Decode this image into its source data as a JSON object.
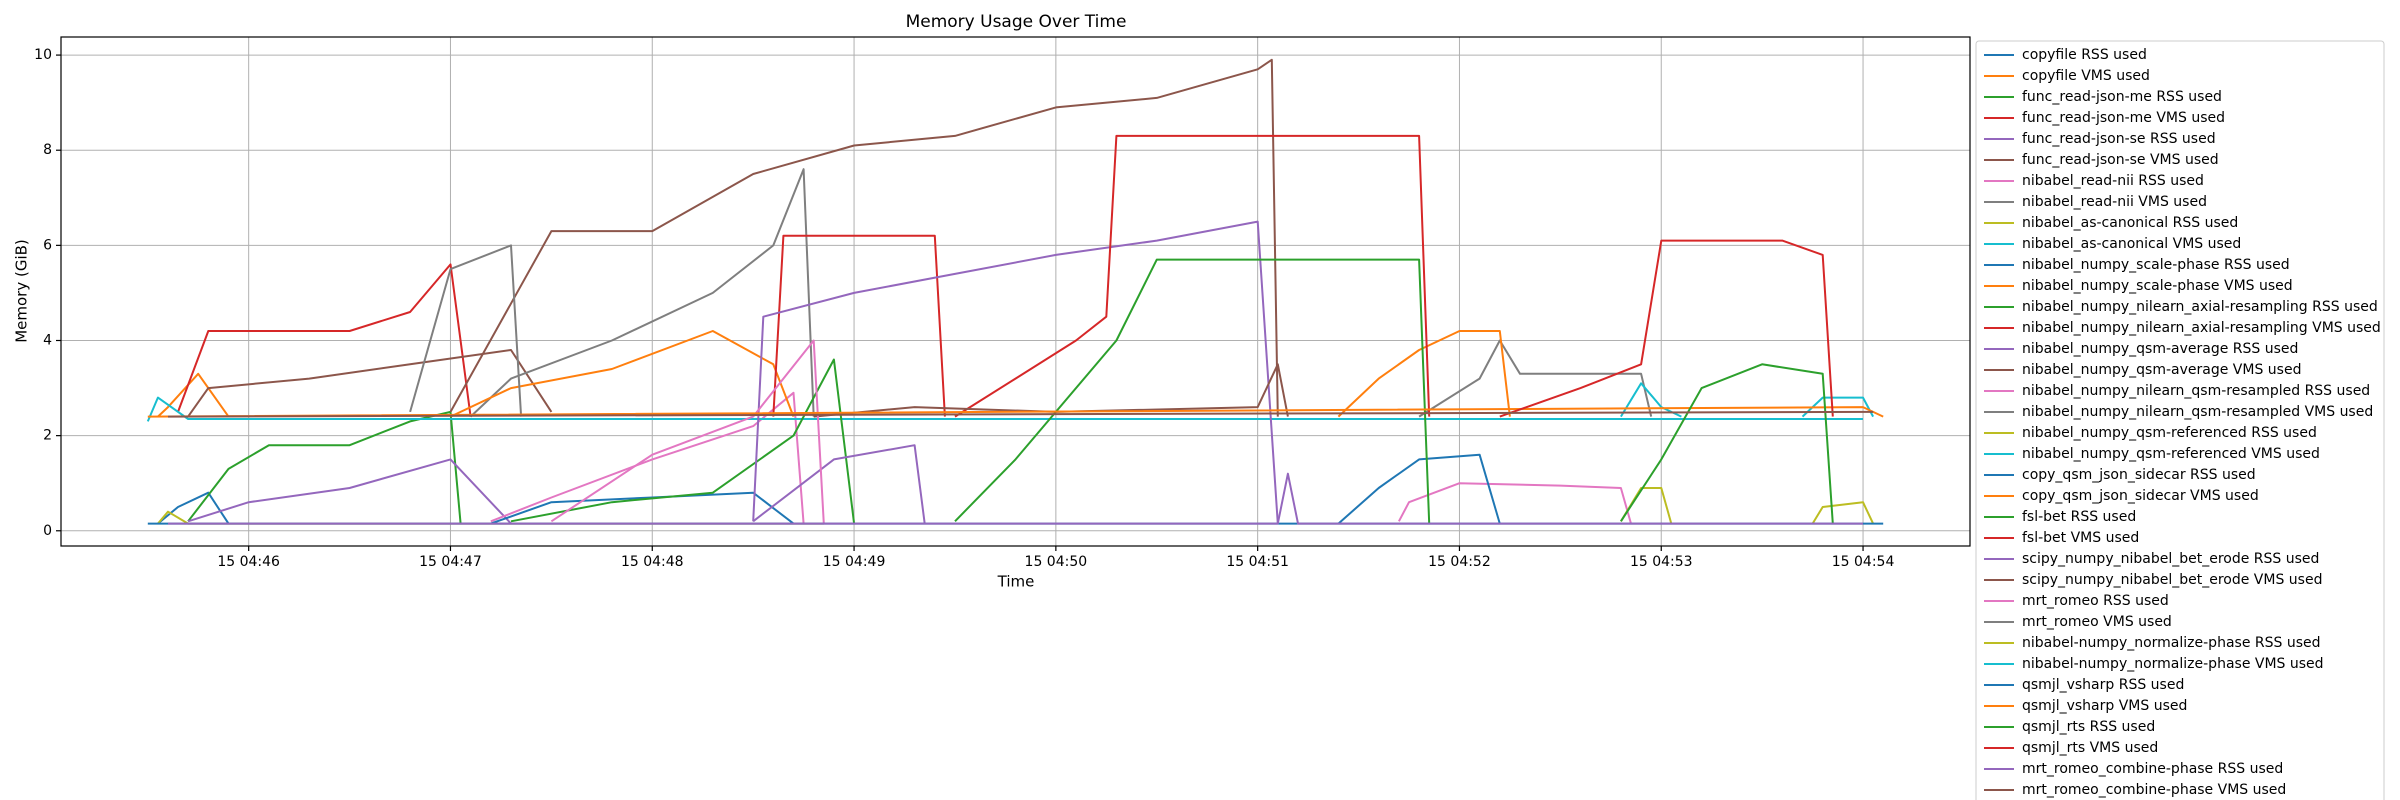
{
  "chart_data": {
    "type": "line",
    "title": "Memory Usage Over Time",
    "xlabel": "Time",
    "ylabel": "Memory (GiB)",
    "xlim": [
      45.07,
      54.53
    ],
    "ylim": [
      -0.32,
      10.38
    ],
    "xticks": [
      {
        "value": 46,
        "label": "15 04:46"
      },
      {
        "value": 47,
        "label": "15 04:47"
      },
      {
        "value": 48,
        "label": "15 04:48"
      },
      {
        "value": 49,
        "label": "15 04:49"
      },
      {
        "value": 50,
        "label": "15 04:50"
      },
      {
        "value": 51,
        "label": "15 04:51"
      },
      {
        "value": 52,
        "label": "15 04:52"
      },
      {
        "value": 53,
        "label": "15 04:53"
      },
      {
        "value": 54,
        "label": "15 04:54"
      }
    ],
    "yticks": [
      0,
      2,
      4,
      6,
      8,
      10
    ],
    "grid": true,
    "legend": "outside right",
    "series": [
      {
        "name": "copyfile RSS used",
        "color": "#1f77b4",
        "x": [
          45.55,
          45.65,
          45.8,
          45.9
        ],
        "values": [
          0.15,
          0.5,
          0.8,
          0.15
        ]
      },
      {
        "name": "copyfile VMS used",
        "color": "#ff7f0e",
        "x": [
          45.55,
          45.6,
          45.75,
          45.9
        ],
        "values": [
          2.4,
          2.6,
          3.3,
          2.4
        ]
      },
      {
        "name": "func_read-json-me RSS used",
        "color": "#2ca02c",
        "x": [
          45.7,
          45.9,
          46.1,
          46.5,
          46.8,
          47.0,
          47.05
        ],
        "values": [
          0.2,
          1.3,
          1.8,
          1.8,
          2.3,
          2.5,
          0.15
        ]
      },
      {
        "name": "func_read-json-me VMS used",
        "color": "#d62728",
        "x": [
          45.65,
          45.8,
          46.5,
          46.8,
          47.0,
          47.1
        ],
        "values": [
          2.5,
          4.2,
          4.2,
          4.6,
          5.6,
          2.4
        ]
      },
      {
        "name": "func_read-json-se RSS used",
        "color": "#9467bd",
        "x": [
          45.7,
          46.0,
          46.5,
          47.0,
          47.3
        ],
        "values": [
          0.2,
          0.6,
          0.9,
          1.5,
          0.15
        ]
      },
      {
        "name": "func_read-json-se VMS used",
        "color": "#8c564b",
        "x": [
          45.7,
          45.8,
          46.3,
          46.8,
          47.3,
          47.5
        ],
        "values": [
          2.4,
          3.0,
          3.2,
          3.5,
          3.8,
          2.5
        ]
      },
      {
        "name": "nibabel_read-nii RSS used",
        "color": "#e377c2",
        "x": [
          47.2,
          47.5,
          48.0,
          48.5,
          48.7,
          48.75
        ],
        "values": [
          0.2,
          0.7,
          1.5,
          2.2,
          2.9,
          0.15
        ]
      },
      {
        "name": "nibabel_read-nii VMS used",
        "color": "#7f7f7f",
        "x": [
          47.1,
          47.3,
          47.8,
          48.3,
          48.6,
          48.75,
          48.8
        ],
        "values": [
          2.4,
          3.2,
          4.0,
          5.0,
          6.0,
          7.6,
          2.4
        ]
      },
      {
        "name": "nibabel_as-canonical RSS used",
        "color": "#bcbd22",
        "x": [
          45.55,
          45.6,
          45.7,
          48.85
        ],
        "values": [
          0.15,
          0.4,
          0.15,
          0.15
        ]
      },
      {
        "name": "nibabel_as-canonical VMS used",
        "color": "#17becf",
        "x": [
          45.5,
          45.55,
          45.7,
          54.0
        ],
        "values": [
          2.3,
          2.8,
          2.35,
          2.35
        ]
      },
      {
        "name": "nibabel_numpy_scale-phase RSS used",
        "color": "#1f77b4",
        "x": [
          47.2,
          47.5,
          48.0,
          48.5,
          48.7
        ],
        "values": [
          0.15,
          0.6,
          0.7,
          0.8,
          0.15
        ]
      },
      {
        "name": "nibabel_numpy_scale-phase VMS used",
        "color": "#ff7f0e",
        "x": [
          47.0,
          47.3,
          47.8,
          48.3,
          48.6,
          48.7
        ],
        "values": [
          2.4,
          3.0,
          3.4,
          4.2,
          3.5,
          2.4
        ]
      },
      {
        "name": "nibabel_numpy_nilearn_axial-resampling RSS used",
        "color": "#2ca02c",
        "x": [
          47.3,
          47.8,
          48.3,
          48.7,
          48.9,
          49.0
        ],
        "values": [
          0.2,
          0.6,
          0.8,
          2.0,
          3.6,
          0.15
        ]
      },
      {
        "name": "nibabel_numpy_nilearn_axial-resampling VMS used",
        "color": "#d62728",
        "x": [
          48.6,
          48.65,
          49.4,
          49.45
        ],
        "values": [
          2.4,
          6.2,
          6.2,
          2.4
        ]
      },
      {
        "name": "nibabel_numpy_qsm-average RSS used",
        "color": "#9467bd",
        "x": [
          48.5,
          48.55,
          49.0,
          49.5,
          50.0,
          50.5,
          51.0,
          51.1
        ],
        "values": [
          0.2,
          4.5,
          5.0,
          5.4,
          5.8,
          6.1,
          6.5,
          0.15
        ]
      },
      {
        "name": "nibabel_numpy_qsm-average VMS used",
        "color": "#8c564b",
        "x": [
          47.0,
          47.5,
          48.0,
          48.5,
          49.0,
          49.5,
          50.0,
          50.5,
          51.0,
          51.07,
          51.1
        ],
        "values": [
          2.5,
          6.3,
          6.3,
          7.5,
          8.1,
          8.3,
          8.9,
          9.1,
          9.7,
          9.9,
          2.4
        ]
      },
      {
        "name": "nibabel_numpy_nilearn_qsm-resampled RSS used",
        "color": "#e377c2",
        "x": [
          51.7,
          51.75,
          52.0,
          52.5,
          52.8,
          52.85
        ],
        "values": [
          0.2,
          0.6,
          1.0,
          0.95,
          0.9,
          0.15
        ]
      },
      {
        "name": "nibabel_numpy_nilearn_qsm-resampled VMS used",
        "color": "#7f7f7f",
        "x": [
          51.8,
          52.1,
          52.2,
          52.3,
          52.9,
          52.95
        ],
        "values": [
          2.4,
          3.2,
          4.0,
          3.3,
          3.3,
          2.4
        ]
      },
      {
        "name": "nibabel_numpy_qsm-referenced RSS used",
        "color": "#bcbd22",
        "x": [
          52.8,
          52.9,
          53.0,
          53.05
        ],
        "values": [
          0.2,
          0.9,
          0.9,
          0.15
        ]
      },
      {
        "name": "nibabel_numpy_qsm-referenced VMS used",
        "color": "#17becf",
        "x": [
          52.8,
          52.9,
          53.0,
          53.1
        ],
        "values": [
          2.4,
          3.1,
          2.6,
          2.4
        ]
      },
      {
        "name": "copy_qsm_json_sidecar RSS used",
        "color": "#1f77b4",
        "x": [
          51.4,
          51.6,
          51.8,
          52.1,
          52.2
        ],
        "values": [
          0.15,
          0.9,
          1.5,
          1.6,
          0.15
        ]
      },
      {
        "name": "copy_qsm_json_sidecar VMS used",
        "color": "#ff7f0e",
        "x": [
          51.4,
          51.6,
          51.8,
          52.0,
          52.2,
          52.25
        ],
        "values": [
          2.4,
          3.2,
          3.8,
          4.2,
          4.2,
          2.4
        ]
      },
      {
        "name": "fsl-bet RSS used",
        "color": "#2ca02c",
        "x": [
          49.5,
          49.8,
          50.3,
          50.5,
          51.0,
          51.8,
          51.85
        ],
        "values": [
          0.2,
          1.5,
          4.0,
          5.7,
          5.7,
          5.7,
          0.15
        ]
      },
      {
        "name": "fsl-bet VMS used",
        "color": "#d62728",
        "x": [
          49.5,
          49.8,
          50.1,
          50.25,
          50.3,
          51.8,
          51.85
        ],
        "values": [
          2.4,
          3.2,
          4.0,
          4.5,
          8.3,
          8.3,
          2.4
        ]
      },
      {
        "name": "scipy_numpy_nibabel_bet_erode RSS used",
        "color": "#9467bd",
        "x": [
          48.5,
          48.9,
          49.3,
          49.35
        ],
        "values": [
          0.2,
          1.5,
          1.8,
          0.15
        ]
      },
      {
        "name": "scipy_numpy_nibabel_bet_erode VMS used",
        "color": "#8c564b",
        "x": [
          48.8,
          49.3,
          50.0,
          51.0,
          51.1,
          51.15
        ],
        "values": [
          2.4,
          2.6,
          2.5,
          2.6,
          3.5,
          2.4
        ]
      },
      {
        "name": "mrt_romeo RSS used",
        "color": "#e377c2",
        "x": [
          47.5,
          48.0,
          48.5,
          48.8,
          48.85
        ],
        "values": [
          0.2,
          1.6,
          2.4,
          4.0,
          0.15
        ]
      },
      {
        "name": "mrt_romeo VMS used",
        "color": "#7f7f7f",
        "x": [
          46.8,
          47.0,
          47.3,
          47.35
        ],
        "values": [
          2.5,
          5.5,
          6.0,
          2.4
        ]
      },
      {
        "name": "nibabel-numpy_normalize-phase RSS used",
        "color": "#bcbd22",
        "x": [
          53.75,
          53.8,
          54.0,
          54.05
        ],
        "values": [
          0.15,
          0.5,
          0.6,
          0.15
        ]
      },
      {
        "name": "nibabel-numpy_normalize-phase VMS used",
        "color": "#17becf",
        "x": [
          53.7,
          53.8,
          54.0,
          54.05
        ],
        "values": [
          2.4,
          2.8,
          2.8,
          2.4
        ]
      },
      {
        "name": "qsmjl_vsharp RSS used",
        "color": "#1f77b4",
        "x": [
          45.5,
          54.1
        ],
        "values": [
          0.15,
          0.15
        ]
      },
      {
        "name": "qsmjl_vsharp VMS used",
        "color": "#ff7f0e",
        "x": [
          45.5,
          54.0,
          54.1
        ],
        "values": [
          2.4,
          2.6,
          2.4
        ]
      },
      {
        "name": "qsmjl_rts RSS used",
        "color": "#2ca02c",
        "x": [
          52.8,
          53.0,
          53.2,
          53.5,
          53.8,
          53.85
        ],
        "values": [
          0.2,
          1.5,
          3.0,
          3.5,
          3.3,
          0.15
        ]
      },
      {
        "name": "qsmjl_rts VMS used",
        "color": "#d62728",
        "x": [
          52.2,
          52.6,
          52.9,
          53.0,
          53.6,
          53.8,
          53.85
        ],
        "values": [
          2.4,
          3.0,
          3.5,
          6.1,
          6.1,
          5.8,
          2.4
        ]
      },
      {
        "name": "mrt_romeo_combine-phase RSS used",
        "color": "#9467bd",
        "x": [
          45.6,
          51.1,
          51.15,
          51.2,
          54.0
        ],
        "values": [
          0.15,
          0.15,
          1.2,
          0.15,
          0.15
        ]
      },
      {
        "name": "mrt_romeo_combine-phase VMS used",
        "color": "#8c564b",
        "x": [
          45.6,
          54.05
        ],
        "values": [
          2.4,
          2.5
        ]
      }
    ]
  }
}
